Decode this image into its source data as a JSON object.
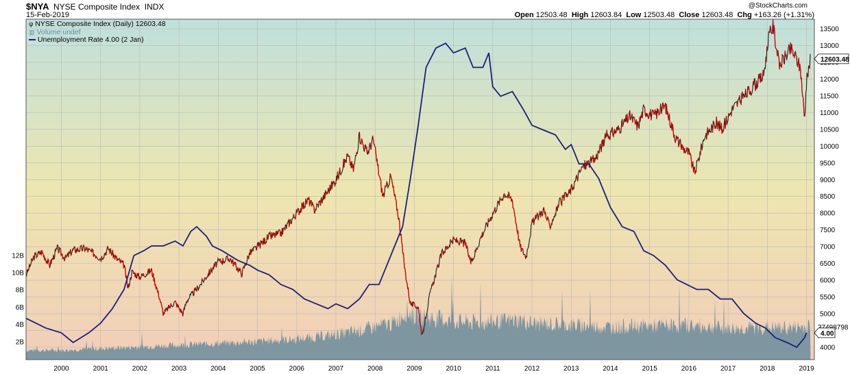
{
  "header": {
    "symbol": "$NYA",
    "name": "NYSE Composite Index",
    "exchange": "INDX",
    "date": "15-Feb-2019",
    "credit": "@StockCharts.com",
    "open_label": "Open",
    "open": "12503.48",
    "high_label": "High",
    "high": "12603.84",
    "low_label": "Low",
    "low": "12503.48",
    "close_label": "Close",
    "close": "12603.48",
    "chg_label": "Chg",
    "chg": "+163.26 (+1.31%)"
  },
  "legend": {
    "price": "NYSE Composite Index (Daily) 12603.48",
    "volume": "Volume undef",
    "unemployment": "Unemployment Rate 4.00 (2 Jan)"
  },
  "badges": {
    "price": "12603.48",
    "volume": "37498798",
    "unemployment": "4.00"
  },
  "colors": {
    "price_line": "#1a1a1a",
    "price_down": "#d40000",
    "unemployment_line": "#1a1f7a",
    "volume_fill": "#7d96a0",
    "bg_top": "#bfe0dc",
    "bg_mid": "#ede6b0",
    "bg_bottom": "#f2cdb8"
  },
  "chart_data": {
    "type": "line",
    "x_tick_labels": [
      "2000",
      "2001",
      "2002",
      "2003",
      "2004",
      "2005",
      "2006",
      "2007",
      "2008",
      "2009",
      "2010",
      "2011",
      "2012",
      "2013",
      "2014",
      "2015",
      "2016",
      "2017",
      "2018",
      "2019"
    ],
    "right_axis_labels": [
      "13500",
      "13000",
      "12500",
      "12000",
      "11500",
      "11000",
      "10500",
      "10000",
      "9500",
      "9000",
      "8500",
      "8000",
      "7500",
      "7000",
      "6500",
      "6000",
      "5500",
      "5000",
      "4500",
      "4000"
    ],
    "left_axis_labels": [
      "12B",
      "10B",
      "8B",
      "6B",
      "4B",
      "2B"
    ],
    "ylim_price": [
      3900,
      13700
    ],
    "xlim": [
      1999.1,
      2019.2
    ],
    "grid": true,
    "series": [
      {
        "name": "NYSE Composite Index (Daily)",
        "x": [
          1999.1,
          1999.3,
          1999.5,
          1999.7,
          1999.9,
          2000.1,
          2000.3,
          2000.6,
          2000.9,
          2001.0,
          2001.2,
          2001.4,
          2001.6,
          2001.7,
          2001.8,
          2002.0,
          2002.3,
          2002.5,
          2002.6,
          2002.75,
          2002.9,
          2003.1,
          2003.2,
          2003.5,
          2003.75,
          2004.0,
          2004.3,
          2004.6,
          2004.8,
          2005.0,
          2005.3,
          2005.6,
          2006.0,
          2006.3,
          2006.45,
          2006.7,
          2007.0,
          2007.3,
          2007.45,
          2007.6,
          2007.8,
          2007.95,
          2008.2,
          2008.4,
          2008.6,
          2008.75,
          2008.9,
          2009.1,
          2009.2,
          2009.4,
          2009.7,
          2010.0,
          2010.3,
          2010.45,
          2010.7,
          2011.0,
          2011.3,
          2011.5,
          2011.7,
          2011.85,
          2012.0,
          2012.3,
          2012.45,
          2012.7,
          2012.95,
          2013.3,
          2013.6,
          2013.9,
          2014.2,
          2014.5,
          2014.7,
          2014.85,
          2015.1,
          2015.4,
          2015.65,
          2015.8,
          2016.0,
          2016.15,
          2016.4,
          2016.7,
          2016.85,
          2017.1,
          2017.5,
          2017.9,
          2018.05,
          2018.15,
          2018.3,
          2018.6,
          2018.75,
          2018.85,
          2018.95,
          2019.0,
          2019.1
        ],
        "y": [
          6150,
          6700,
          6850,
          6450,
          6950,
          6650,
          6900,
          6950,
          6750,
          6650,
          6950,
          6650,
          6450,
          5750,
          6250,
          6100,
          6300,
          5500,
          5000,
          5200,
          5350,
          5000,
          5400,
          5800,
          6200,
          6550,
          6650,
          6200,
          6800,
          7000,
          7300,
          7400,
          8000,
          8400,
          8100,
          8500,
          9000,
          9700,
          9300,
          10300,
          9800,
          10200,
          8500,
          9100,
          7900,
          6400,
          5300,
          5200,
          4300,
          5600,
          6800,
          7200,
          7100,
          6500,
          7300,
          8000,
          8600,
          8400,
          7000,
          6700,
          7700,
          8100,
          7600,
          8300,
          8600,
          9400,
          9600,
          10300,
          10500,
          10900,
          10600,
          11100,
          10900,
          11200,
          10300,
          10000,
          9800,
          9200,
          10300,
          10700,
          10500,
          11100,
          11600,
          12100,
          13300,
          13600,
          12400,
          12900,
          12600,
          12300,
          10800,
          11900,
          12603
        ]
      },
      {
        "name": "Unemployment Rate",
        "x": [
          1999.1,
          1999.6,
          2000.0,
          2000.3,
          2000.7,
          2001.0,
          2001.3,
          2001.6,
          2001.85,
          2002.1,
          2002.3,
          2002.6,
          2002.9,
          2003.1,
          2003.3,
          2003.45,
          2003.7,
          2003.85,
          2004.1,
          2004.5,
          2004.8,
          2005.0,
          2005.3,
          2005.6,
          2005.9,
          2006.2,
          2006.5,
          2006.8,
          2007.0,
          2007.3,
          2007.6,
          2007.85,
          2008.1,
          2008.3,
          2008.5,
          2008.7,
          2008.9,
          2009.1,
          2009.3,
          2009.55,
          2009.8,
          2010.0,
          2010.3,
          2010.5,
          2010.75,
          2010.9,
          2011.0,
          2011.2,
          2011.5,
          2011.8,
          2012.0,
          2012.3,
          2012.6,
          2012.85,
          2013.0,
          2013.2,
          2013.45,
          2013.7,
          2014.0,
          2014.3,
          2014.6,
          2014.85,
          2015.1,
          2015.4,
          2015.7,
          2015.95,
          2016.2,
          2016.5,
          2016.8,
          2017.1,
          2017.4,
          2017.7,
          2017.95,
          2018.2,
          2018.5,
          2018.75,
          2018.95,
          2019.0
        ],
        "y": [
          4.3,
          4.1,
          4.0,
          3.8,
          4.0,
          4.2,
          4.5,
          4.9,
          5.6,
          5.7,
          5.8,
          5.8,
          5.9,
          5.8,
          6.1,
          6.2,
          6.0,
          5.8,
          5.7,
          5.5,
          5.4,
          5.3,
          5.2,
          5.0,
          4.9,
          4.7,
          4.6,
          4.5,
          4.6,
          4.5,
          4.7,
          5.0,
          5.0,
          5.4,
          5.8,
          6.2,
          7.2,
          8.3,
          9.5,
          9.9,
          10.0,
          9.8,
          9.9,
          9.5,
          9.5,
          9.8,
          9.1,
          8.9,
          9.0,
          8.6,
          8.3,
          8.2,
          8.1,
          7.8,
          7.9,
          7.5,
          7.5,
          7.2,
          6.6,
          6.2,
          6.1,
          5.7,
          5.6,
          5.4,
          5.1,
          5.0,
          4.9,
          4.9,
          4.7,
          4.7,
          4.4,
          4.2,
          4.1,
          3.9,
          3.8,
          3.7,
          3.9,
          4.0
        ]
      }
    ],
    "volume": {
      "name": "Volume",
      "x": [
        1999.1,
        2000.0,
        2001.0,
        2002.0,
        2003.0,
        2004.0,
        2005.0,
        2006.0,
        2007.0,
        2007.6,
        2008.0,
        2008.5,
        2008.8,
        2009.0,
        2009.3,
        2009.7,
        2010.0,
        2010.5,
        2011.0,
        2011.7,
        2012.0,
        2013.0,
        2014.0,
        2015.0,
        2016.0,
        2017.0,
        2018.0,
        2018.5,
        2019.0,
        2019.1
      ],
      "y": [
        1.0,
        1.0,
        1.2,
        1.4,
        1.6,
        1.8,
        2.0,
        2.3,
        2.8,
        3.3,
        3.7,
        4.2,
        5.6,
        5.0,
        4.8,
        4.6,
        4.4,
        4.2,
        4.3,
        4.5,
        4.1,
        3.9,
        3.7,
        3.8,
        3.9,
        3.5,
        3.6,
        3.6,
        3.7,
        3.8
      ]
    }
  }
}
